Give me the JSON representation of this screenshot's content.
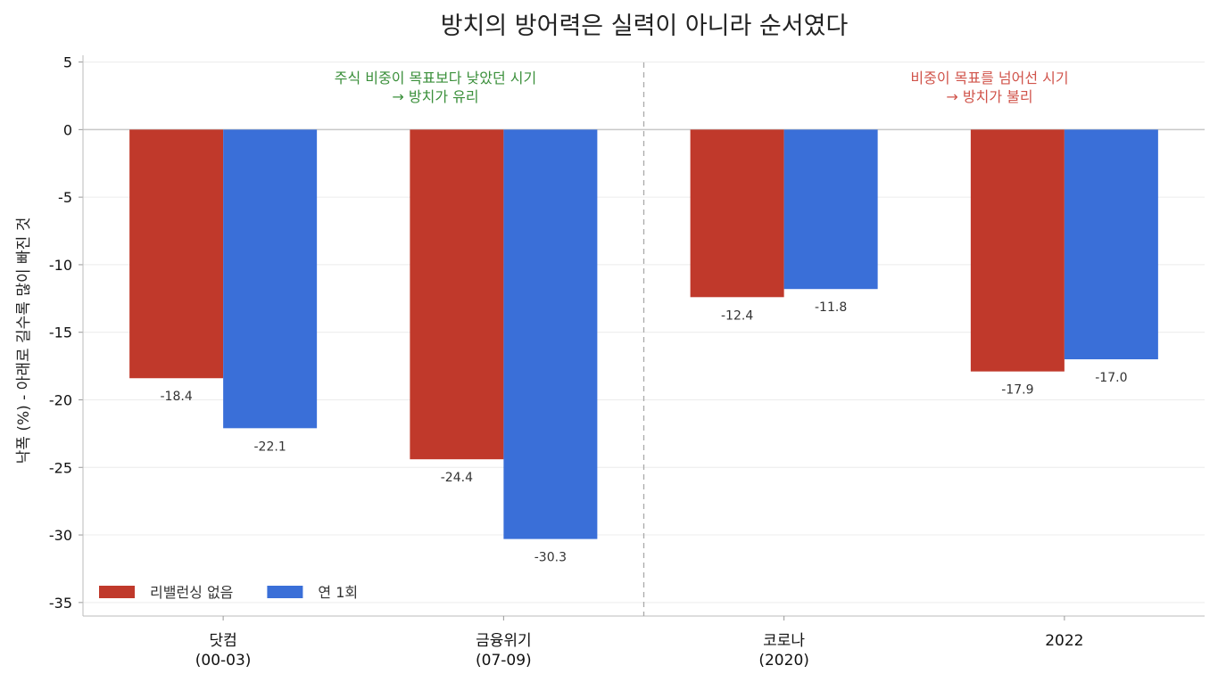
{
  "chart_data": {
    "type": "bar",
    "title": "방치의 방어력은 실력이 아니라 순서였다",
    "ylabel": "낙폭 (%)  - 아래로 길수록 많이 빠진 것",
    "xlabel": "",
    "ylim": [
      -36,
      5.5
    ],
    "yticks": [
      5,
      0,
      -5,
      -10,
      -15,
      -20,
      -25,
      -30,
      -35
    ],
    "grid": true,
    "legend_position": "bottom-left",
    "categories": [
      {
        "line1": "닷컴",
        "line2": "(00-03)"
      },
      {
        "line1": "금융위기",
        "line2": "(07-09)"
      },
      {
        "line1": "코로나",
        "line2": "(2020)"
      },
      {
        "line1": "2022",
        "line2": ""
      }
    ],
    "series": [
      {
        "name": "리밸런싱 없음",
        "color": "#C0392B",
        "values": [
          -18.4,
          -24.4,
          -12.4,
          -17.9
        ],
        "labels": [
          "-18.4",
          "-24.4",
          "-12.4",
          "-17.9"
        ]
      },
      {
        "name": "연 1회",
        "color": "#3A6FD8",
        "values": [
          -22.1,
          -30.3,
          -11.8,
          -17.0
        ],
        "labels": [
          "-22.1",
          "-30.3",
          "-11.8",
          "-17.0"
        ]
      }
    ],
    "annotations": [
      {
        "lines": [
          "주식 비중이 목표보다 낮았던 시기",
          "→ 방치가 유리"
        ],
        "color": "#3A8F3A",
        "region": "left"
      },
      {
        "lines": [
          "비중이 목표를 넘어선 시기",
          "→ 방치가 불리"
        ],
        "color": "#D0534A",
        "region": "right"
      }
    ]
  }
}
